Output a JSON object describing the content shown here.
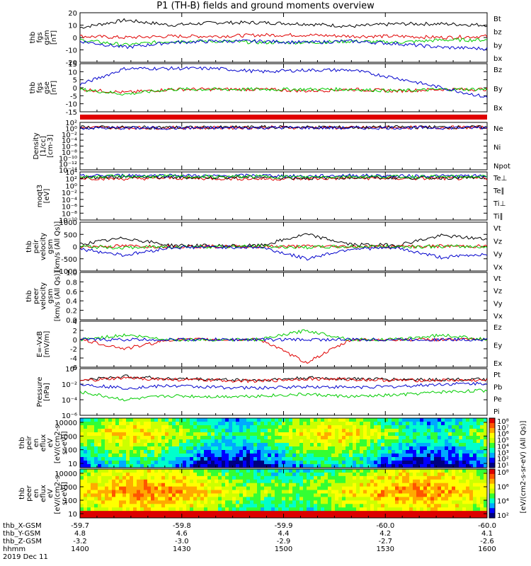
{
  "title": "P1 (TH-B) fields and ground moments overview",
  "colors": {
    "black": "#000000",
    "red": "#e00000",
    "green": "#00cc00",
    "blue": "#0000cc"
  },
  "chart_data": {
    "type": "line",
    "x_axis": {
      "tick_labels": {
        "thb_X-GSM": [
          "-59.7",
          "-59.8",
          "-59.9",
          "-60.0",
          "-60.0"
        ],
        "thb_Y-GSM": [
          "4.8",
          "4.6",
          "4.4",
          "4.2",
          "4.1"
        ],
        "thb_Z-GSM": [
          "-3.2",
          "-3.0",
          "-2.9",
          "-2.7",
          "-2.6"
        ],
        "hhmm": [
          "1400",
          "1430",
          "1500",
          "1530",
          "1600"
        ]
      },
      "row_labels": [
        "thb_X-GSM",
        "thb_Y-GSM",
        "thb_Z-GSM",
        "hhmm"
      ],
      "date_label": "2019 Dec 11",
      "time_range": [
        "1400",
        "1600"
      ]
    },
    "panels": [
      {
        "id": "fgs_gsm",
        "ylabel": [
          "thb",
          "fgs",
          "gsm",
          "[nT]"
        ],
        "ylim": [
          -20,
          20
        ],
        "ticks": [
          "20",
          "10",
          "0",
          "-10",
          "-20"
        ],
        "legend": [
          "Bt",
          "bz",
          "by",
          "bx"
        ],
        "legend_colors": [
          "#000000",
          "#e00000",
          "#00cc00",
          "#0000cc"
        ],
        "series": [
          {
            "name": "Bt",
            "color": "#000000",
            "values": [
              8,
              14,
              10,
              12,
              12,
              11,
              9,
              11,
              11,
              10
            ]
          },
          {
            "name": "bz",
            "color": "#e00000",
            "values": [
              1,
              0,
              1,
              1,
              2,
              2,
              1,
              1,
              0,
              1
            ]
          },
          {
            "name": "by",
            "color": "#00cc00",
            "values": [
              -2,
              -6,
              -3,
              -3,
              -4,
              -4,
              -3,
              -4,
              -2,
              -2
            ]
          },
          {
            "name": "bx",
            "color": "#0000cc",
            "values": [
              -3,
              -8,
              -4,
              -3,
              -3,
              -4,
              -3,
              -5,
              -8,
              -9
            ]
          }
        ]
      },
      {
        "id": "fgs_gse",
        "ylabel": [
          "thb",
          "fgs",
          "gse",
          "[nT]"
        ],
        "ylim": [
          -15,
          15
        ],
        "ticks": [
          "15",
          "10",
          "5",
          "0",
          "-5",
          "-10",
          "-15"
        ],
        "legend": [
          "Bz",
          "By",
          "Bx"
        ],
        "legend_colors": [
          "#e00000",
          "#00cc00",
          "#0000cc"
        ],
        "series": [
          {
            "name": "Bz",
            "color": "#e00000",
            "values": [
              -1,
              -3,
              -1,
              -1,
              -1,
              -2,
              -1,
              -2,
              -1,
              -1
            ]
          },
          {
            "name": "By",
            "color": "#00cc00",
            "values": [
              -1,
              -4,
              -1,
              -1,
              -1,
              -1,
              -1,
              -2,
              -1,
              -1
            ]
          },
          {
            "name": "Bx",
            "color": "#0000cc",
            "values": [
              2,
              12,
              12,
              12,
              10,
              11,
              11,
              6,
              0,
              -6
            ]
          }
        ]
      },
      {
        "id": "density",
        "ylabel": [
          "Density",
          "[1/cc]",
          "[cm-3]"
        ],
        "log": true,
        "ylim": [
          -14,
          2
        ],
        "ticks": [
          "10²",
          "10⁰",
          "10⁻²",
          "10⁻⁴",
          "10⁻⁶",
          "10⁻⁸",
          "10⁻¹⁰",
          "10⁻¹²",
          "10⁻¹⁴"
        ],
        "legend": [
          "Ne",
          "Ni",
          "Npot"
        ],
        "legend_colors": [
          "#e00000",
          "#000000",
          "#0000cc"
        ],
        "series": [
          {
            "name": "Ne",
            "color": "#e00000",
            "values": [
              0.3,
              0.2,
              0.2,
              0.2,
              0.3,
              0.3,
              0.2,
              0.3,
              0.3,
              0.3
            ]
          },
          {
            "name": "Ni",
            "color": "#000000",
            "values": [
              0.4,
              0.3,
              0.3,
              0.3,
              0.4,
              0.4,
              0.3,
              0.4,
              0.4,
              0.4
            ]
          },
          {
            "name": "Npot",
            "color": "#0000cc",
            "values": [
              0.1,
              0.1,
              0.1,
              0.1,
              0.2,
              0.2,
              0.1,
              0.2,
              0.2,
              0.2
            ]
          }
        ]
      },
      {
        "id": "moqt3",
        "ylabel": [
          "moqt3",
          "[eV]"
        ],
        "log": true,
        "ylim": [
          -10,
          4
        ],
        "ticks": [
          "10⁴",
          "10²",
          "10⁰",
          "10⁻²",
          "10⁻⁴",
          "10⁻⁶",
          "10⁻⁸",
          "10⁻¹⁰"
        ],
        "legend": [
          "Te⊥",
          "Te∥",
          "Ti⊥",
          "Ti∥"
        ],
        "legend_colors": [
          "#e00000",
          "#000000",
          "#0000cc",
          "#00cc00"
        ],
        "series": [
          {
            "name": "Te⊥",
            "color": "#e00000",
            "values": [
              2.2,
              2.0,
              2.2,
              2.1,
              2.0,
              2.0,
              2.2,
              2.1,
              2.1,
              2.1
            ]
          },
          {
            "name": "Te∥",
            "color": "#000000",
            "values": [
              2.4,
              2.6,
              2.4,
              2.4,
              2.5,
              2.2,
              2.4,
              2.3,
              2.3,
              2.3
            ]
          },
          {
            "name": "Ti⊥",
            "color": "#0000cc",
            "values": [
              2.8,
              3.0,
              3.0,
              2.8,
              3.0,
              2.7,
              3.0,
              2.8,
              2.8,
              2.8
            ]
          },
          {
            "name": "Ti∥",
            "color": "#00cc00",
            "values": [
              2.6,
              2.7,
              2.7,
              2.6,
              2.7,
              2.5,
              2.7,
              2.6,
              2.6,
              2.6
            ]
          }
        ]
      },
      {
        "id": "peir_velocity",
        "ylabel": [
          "thb",
          "peir",
          "velocity",
          "gsm",
          "[km/s (All Qs)]"
        ],
        "ylim": [
          -1000,
          1000
        ],
        "ticks": [
          "1000",
          "500",
          "0",
          "-500",
          "-1000"
        ],
        "legend": [
          "Vt",
          "Vz",
          "Vy",
          "Vx"
        ],
        "legend_colors": [
          "#000000",
          "#e00000",
          "#00cc00",
          "#0000cc"
        ],
        "series": [
          {
            "name": "Vt",
            "color": "#000000",
            "values": [
              100,
              350,
              50,
              30,
              40,
              500,
              80,
              60,
              450,
              300
            ]
          },
          {
            "name": "Vz",
            "color": "#e00000",
            "values": [
              0,
              20,
              0,
              0,
              0,
              10,
              0,
              0,
              20,
              10
            ]
          },
          {
            "name": "Vy",
            "color": "#00cc00",
            "values": [
              0,
              -50,
              0,
              0,
              0,
              -30,
              0,
              0,
              0,
              0
            ]
          },
          {
            "name": "Vx",
            "color": "#0000cc",
            "values": [
              -100,
              -350,
              -40,
              -20,
              -30,
              -500,
              -80,
              -60,
              -450,
              -300
            ]
          }
        ]
      },
      {
        "id": "peer_velocity",
        "ylabel": [
          "thb",
          "peer",
          "velocity",
          "gsm",
          "[km/s (All Qs)]"
        ],
        "ylim": [
          0,
          1
        ],
        "ticks": [
          "1.0",
          "0.8",
          "0.6",
          "0.4",
          "0.2",
          "0.0"
        ],
        "legend": [
          "Vt",
          "Vz",
          "Vy",
          "Vx"
        ],
        "legend_colors": [
          "#000000",
          "#e00000",
          "#00cc00",
          "#0000cc"
        ],
        "series": []
      },
      {
        "id": "efield",
        "ylabel": [
          "E=-VxB",
          "[mV/m]"
        ],
        "ylim": [
          -6,
          4
        ],
        "ticks": [
          "4",
          "2",
          "0",
          "-2",
          "-4",
          "-6"
        ],
        "legend": [
          "Ez",
          "Ey",
          "Ex"
        ],
        "legend_colors": [
          "#e00000",
          "#00cc00",
          "#0000cc"
        ],
        "series": [
          {
            "name": "Ez",
            "color": "#e00000",
            "values": [
              0,
              -2,
              0,
              0,
              0,
              -5,
              0,
              0,
              0,
              0
            ]
          },
          {
            "name": "Ey",
            "color": "#00cc00",
            "values": [
              0,
              1,
              0,
              0,
              0,
              2,
              0,
              0,
              1,
              0
            ]
          },
          {
            "name": "Ex",
            "color": "#0000cc",
            "values": [
              0,
              0,
              0,
              0,
              0,
              0,
              0,
              0,
              0,
              0
            ]
          }
        ]
      },
      {
        "id": "pressure",
        "ylabel": [
          "Pressure",
          "[nPa]"
        ],
        "log": true,
        "ylim": [
          -6,
          0
        ],
        "ticks": [
          "10⁰",
          "10⁻²",
          "10⁻⁴",
          "10⁻⁶"
        ],
        "legend": [
          "Pt",
          "Pb",
          "Pe",
          "Pi"
        ],
        "legend_colors": [
          "#000000",
          "#e00000",
          "#00cc00",
          "#0000cc"
        ],
        "series": [
          {
            "name": "Pt",
            "color": "#000000",
            "values": [
              -1.5,
              -1.0,
              -1.3,
              -1.4,
              -1.5,
              -1.2,
              -1.3,
              -1.4,
              -1.4,
              -1.4
            ]
          },
          {
            "name": "Pb",
            "color": "#e00000",
            "values": [
              -1.6,
              -1.2,
              -1.4,
              -1.5,
              -1.6,
              -1.3,
              -1.4,
              -1.5,
              -1.5,
              -1.5
            ]
          },
          {
            "name": "Pe",
            "color": "#00cc00",
            "values": [
              -3.0,
              -4.0,
              -3.5,
              -3.6,
              -3.5,
              -3.3,
              -3.6,
              -3.4,
              -3.0,
              -2.8
            ]
          },
          {
            "name": "Pi",
            "color": "#0000cc",
            "values": [
              -2.0,
              -2.5,
              -2.2,
              -2.4,
              -2.5,
              -2.3,
              -2.4,
              -2.3,
              -2.0,
              -1.9
            ]
          }
        ]
      }
    ],
    "spectrograms": [
      {
        "id": "peir_en_eflux",
        "ylabel": [
          "thb",
          "peir",
          "en",
          "eflux",
          "eV",
          "[eV/(cm2-s-",
          "sr-eV)]"
        ],
        "ticks": [
          "10000",
          "1000",
          "100",
          "10"
        ],
        "colorbar_ticks": [
          "10⁸",
          "10⁷",
          "10⁶",
          "10⁵",
          "10⁴",
          "10³",
          "10²",
          "10¹"
        ]
      },
      {
        "id": "peer_en_eflux",
        "ylabel": [
          "thb",
          "peer",
          "en",
          "eflux",
          "eV",
          "[eV/(cm2-s-",
          "sr-eV)]"
        ],
        "ticks": [
          "10000",
          "1000",
          "100",
          "10"
        ],
        "colorbar_ticks": [
          "10⁸",
          "10⁶",
          "10⁴",
          "10²"
        ]
      }
    ],
    "colorbar_label": "[eV/(cm2-s-sr-eV) (All Qs)]"
  }
}
